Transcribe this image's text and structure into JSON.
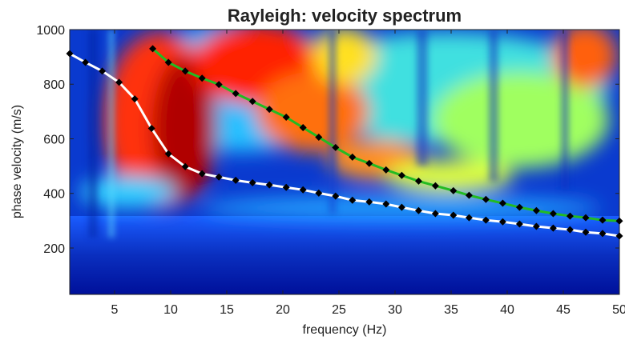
{
  "chart_data": {
    "type": "line",
    "title": "Rayleigh: velocity spectrum",
    "xlabel": "frequency (Hz)",
    "ylabel": "phase velocity (m/s)",
    "xlim": [
      1,
      50
    ],
    "ylim": [
      30,
      1000
    ],
    "xticks": [
      5,
      10,
      15,
      20,
      25,
      30,
      35,
      40,
      45,
      50
    ],
    "yticks": [
      200,
      400,
      600,
      800,
      1000
    ],
    "marker_color": "#000000",
    "series": [
      {
        "color": "#ffffff",
        "x": [
          1,
          2.4,
          3.9,
          5.4,
          6.8,
          8.3,
          9.8,
          11.3,
          12.8,
          14.3,
          15.8,
          17.3,
          18.8,
          20.3,
          21.8,
          23.2,
          24.7,
          26.2,
          27.7,
          29.2,
          30.6,
          32.1,
          33.6,
          35.2,
          36.6,
          38.1,
          39.6,
          41.1,
          42.6,
          44.1,
          45.6,
          47.0,
          48.5,
          50
        ],
        "values": [
          912,
          880,
          848,
          807,
          746,
          638,
          545,
          498,
          472,
          460,
          448,
          439,
          431,
          422,
          413,
          401,
          390,
          375,
          369,
          361,
          349,
          337,
          326,
          320,
          311,
          302,
          296,
          288,
          279,
          273,
          267,
          258,
          253,
          244
        ]
      },
      {
        "color": "#22bb22",
        "x": [
          8.4,
          9.8,
          11.3,
          12.8,
          14.3,
          15.8,
          17.3,
          18.8,
          20.3,
          21.8,
          23.2,
          24.7,
          26.2,
          27.7,
          29.2,
          30.6,
          32.1,
          33.6,
          35.2,
          36.6,
          38.1,
          39.6,
          41.1,
          42.6,
          44.1,
          45.6,
          47.0,
          48.5,
          50
        ],
        "values": [
          930,
          880,
          848,
          822,
          799,
          766,
          737,
          708,
          679,
          641,
          606,
          568,
          533,
          510,
          486,
          466,
          445,
          428,
          410,
          393,
          378,
          364,
          349,
          337,
          326,
          317,
          311,
          302,
          299
        ]
      }
    ]
  }
}
